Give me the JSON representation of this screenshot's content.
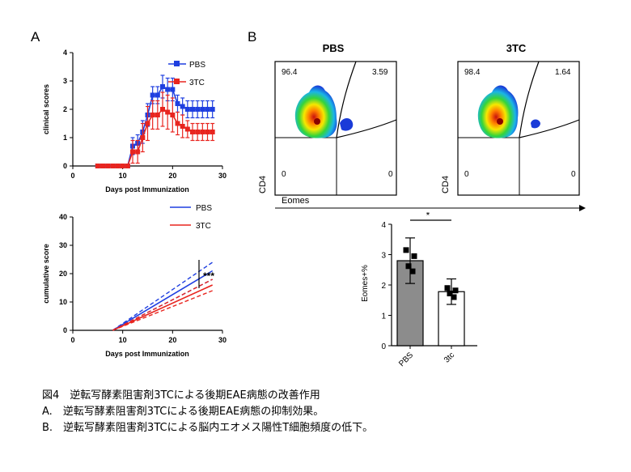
{
  "panels": {
    "a_label": "A",
    "b_label": "B"
  },
  "chart_data": [
    {
      "type": "line",
      "ylabel": "clinical scores",
      "xlabel": "Days post Immunization",
      "xlim": [
        0,
        30
      ],
      "ylim": [
        0,
        4
      ],
      "x_ticks": [
        0,
        10,
        20,
        30
      ],
      "y_ticks": [
        0,
        1,
        2,
        3,
        4
      ],
      "legend_position": "top-right",
      "series": [
        {
          "name": "PBS",
          "color": "#1f3fe0",
          "x": [
            5,
            6,
            7,
            8,
            9,
            10,
            11,
            12,
            13,
            14,
            15,
            16,
            17,
            18,
            19,
            20,
            21,
            22,
            23,
            24,
            25,
            26,
            27,
            28
          ],
          "y": [
            0,
            0,
            0,
            0,
            0,
            0,
            0,
            0.7,
            0.8,
            1.2,
            1.8,
            2.5,
            2.5,
            2.8,
            2.7,
            2.7,
            2.2,
            2.1,
            2.0,
            2.0,
            2.0,
            2.0,
            2.0,
            2.0
          ],
          "err": [
            0,
            0,
            0,
            0,
            0,
            0,
            0,
            0.3,
            0.3,
            0.4,
            0.4,
            0.3,
            0.3,
            0.4,
            0.4,
            0.4,
            0.3,
            0.3,
            0.3,
            0.3,
            0.3,
            0.3,
            0.3,
            0.3
          ]
        },
        {
          "name": "3TC",
          "color": "#e8251f",
          "x": [
            5,
            6,
            7,
            8,
            9,
            10,
            11,
            12,
            13,
            14,
            15,
            16,
            17,
            18,
            19,
            20,
            21,
            22,
            23,
            24,
            25,
            26,
            27,
            28
          ],
          "y": [
            0,
            0,
            0,
            0,
            0,
            0,
            0,
            0.5,
            0.5,
            1.0,
            1.5,
            1.8,
            1.8,
            2.0,
            1.9,
            1.8,
            1.5,
            1.4,
            1.3,
            1.2,
            1.2,
            1.2,
            1.2,
            1.2
          ],
          "err": [
            0,
            0,
            0,
            0,
            0,
            0,
            0,
            0.4,
            0.4,
            0.5,
            0.6,
            0.5,
            0.5,
            0.6,
            0.6,
            0.6,
            0.4,
            0.4,
            0.3,
            0.3,
            0.3,
            0.3,
            0.3,
            0.3
          ]
        }
      ]
    },
    {
      "type": "line",
      "ylabel": "cumulative score",
      "xlabel": "Days post Immunization",
      "xlim": [
        0,
        30
      ],
      "ylim": [
        0,
        40
      ],
      "x_ticks": [
        0,
        10,
        20,
        30
      ],
      "y_ticks": [
        0,
        10,
        20,
        30,
        40
      ],
      "legend_position": "top-right",
      "annotation": "***",
      "series": [
        {
          "name": "PBS",
          "color": "#1f3fe0",
          "x": [
            8,
            28
          ],
          "y": [
            0,
            21
          ],
          "band_upper": [
            0,
            24
          ],
          "band_lower": [
            0,
            18
          ]
        },
        {
          "name": "3TC",
          "color": "#e8251f",
          "x": [
            8,
            28
          ],
          "y": [
            0,
            16
          ],
          "band_upper": [
            0,
            18
          ],
          "band_lower": [
            0,
            14
          ]
        }
      ]
    },
    {
      "type": "bar",
      "ylabel": "Eomes+%",
      "categories": [
        "PBS",
        "3tc"
      ],
      "ylim": [
        0,
        4
      ],
      "y_ticks": [
        0,
        1,
        2,
        3,
        4
      ],
      "values": [
        2.8,
        1.78
      ],
      "errors": [
        0.75,
        0.42
      ],
      "points": [
        [
          3.15,
          2.95,
          2.62,
          2.45
        ],
        [
          1.9,
          1.82,
          1.72,
          1.6
        ]
      ],
      "bar_colors": [
        "#8c8c8c",
        "#ffffff"
      ],
      "annotation": "*"
    }
  ],
  "flow": {
    "pbs": {
      "title": "PBS",
      "q_ul": "96.4",
      "q_ur": "3.59",
      "q_ll": "0",
      "q_lr": "0"
    },
    "tc": {
      "title": "3TC",
      "q_ul": "98.4",
      "q_ur": "1.64",
      "q_ll": "0",
      "q_lr": "0"
    },
    "y_axis_label": "CD4",
    "x_axis_label": "Eomes"
  },
  "caption": {
    "line1": "図4　逆転写酵素阻害剤3TCによる後期EAE病態の改善作用",
    "line2": "A.　逆転写酵素阻害剤3TCによる後期EAE病態の抑制効果。",
    "line3": "B.　逆転写酵素阻害剤3TCによる脳内エオメス陽性T細胞頻度の低下。"
  }
}
